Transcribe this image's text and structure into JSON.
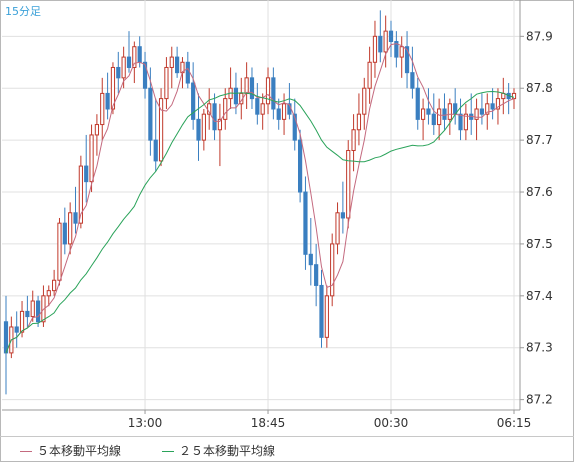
{
  "chart_data": {
    "type": "candlestick",
    "timeframe_label": "15分足",
    "ylim": [
      87.18,
      87.97
    ],
    "y_ticks": [
      "87.2",
      "87.3",
      "87.4",
      "87.5",
      "87.6",
      "87.7",
      "87.8",
      "87.9"
    ],
    "x_ticks": [
      {
        "label": "13:00",
        "bar": 26
      },
      {
        "label": "18:45",
        "bar": 49
      },
      {
        "label": "00:30",
        "bar": 72
      },
      {
        "label": "06:15",
        "bar": 95
      }
    ],
    "grid": true,
    "colors": {
      "up": "#c0392b",
      "down": "#3a7fc0",
      "ma5": "#c46a7f",
      "ma25": "#2aa35a",
      "grid": "#e0e0e0",
      "axis": "#999999"
    },
    "candles": [
      [
        87.35,
        87.4,
        87.21,
        87.29
      ],
      [
        87.29,
        87.36,
        87.28,
        87.34
      ],
      [
        87.34,
        87.37,
        87.3,
        87.33
      ],
      [
        87.33,
        87.39,
        87.32,
        87.37
      ],
      [
        87.37,
        87.4,
        87.34,
        87.36
      ],
      [
        87.36,
        87.41,
        87.35,
        87.39
      ],
      [
        87.39,
        87.4,
        87.34,
        87.35
      ],
      [
        87.35,
        87.42,
        87.34,
        87.4
      ],
      [
        87.4,
        87.42,
        87.38,
        87.41
      ],
      [
        87.41,
        87.45,
        87.4,
        87.43
      ],
      [
        87.43,
        87.55,
        87.42,
        87.54
      ],
      [
        87.54,
        87.57,
        87.48,
        87.5
      ],
      [
        87.5,
        87.58,
        87.48,
        87.56
      ],
      [
        87.56,
        87.61,
        87.52,
        87.54
      ],
      [
        87.54,
        87.67,
        87.53,
        87.65
      ],
      [
        87.65,
        87.71,
        87.58,
        87.62
      ],
      [
        87.62,
        87.73,
        87.6,
        87.71
      ],
      [
        87.71,
        87.75,
        87.67,
        87.73
      ],
      [
        87.73,
        87.82,
        87.7,
        87.79
      ],
      [
        87.79,
        87.83,
        87.74,
        87.76
      ],
      [
        87.76,
        87.85,
        87.75,
        87.84
      ],
      [
        87.84,
        87.87,
        87.79,
        87.82
      ],
      [
        87.82,
        87.88,
        87.8,
        87.86
      ],
      [
        87.86,
        87.91,
        87.83,
        87.84
      ],
      [
        87.84,
        87.89,
        87.81,
        87.88
      ],
      [
        87.88,
        87.9,
        87.84,
        87.85
      ],
      [
        87.85,
        87.87,
        87.78,
        87.8
      ],
      [
        87.8,
        87.84,
        87.67,
        87.7
      ],
      [
        87.7,
        87.78,
        87.64,
        87.66
      ],
      [
        87.66,
        87.8,
        87.65,
        87.78
      ],
      [
        87.78,
        87.86,
        87.76,
        87.84
      ],
      [
        87.84,
        87.88,
        87.8,
        87.86
      ],
      [
        87.86,
        87.88,
        87.82,
        87.83
      ],
      [
        87.83,
        87.86,
        87.8,
        87.85
      ],
      [
        87.85,
        87.87,
        87.8,
        87.81
      ],
      [
        87.81,
        87.85,
        87.72,
        87.74
      ],
      [
        87.74,
        87.79,
        87.66,
        87.7
      ],
      [
        87.7,
        87.76,
        87.68,
        87.75
      ],
      [
        87.75,
        87.8,
        87.72,
        87.77
      ],
      [
        87.77,
        87.79,
        87.7,
        87.72
      ],
      [
        87.72,
        87.77,
        87.65,
        87.74
      ],
      [
        87.74,
        87.8,
        87.72,
        87.78
      ],
      [
        87.78,
        87.84,
        87.76,
        87.8
      ],
      [
        87.8,
        87.83,
        87.75,
        87.77
      ],
      [
        87.77,
        87.82,
        87.74,
        87.79
      ],
      [
        87.79,
        87.85,
        87.76,
        87.82
      ],
      [
        87.82,
        87.84,
        87.76,
        87.78
      ],
      [
        87.78,
        87.81,
        87.73,
        87.75
      ],
      [
        87.75,
        87.79,
        87.72,
        87.77
      ],
      [
        87.77,
        87.84,
        87.75,
        87.82
      ],
      [
        87.82,
        87.84,
        87.74,
        87.76
      ],
      [
        87.76,
        87.78,
        87.72,
        87.74
      ],
      [
        87.74,
        87.79,
        87.71,
        87.77
      ],
      [
        87.77,
        87.81,
        87.74,
        87.75
      ],
      [
        87.75,
        87.78,
        87.68,
        87.7
      ],
      [
        87.7,
        87.72,
        87.58,
        87.6
      ],
      [
        87.6,
        87.63,
        87.45,
        87.48
      ],
      [
        87.48,
        87.55,
        87.42,
        87.46
      ],
      [
        87.46,
        87.5,
        87.38,
        87.42
      ],
      [
        87.42,
        87.45,
        87.3,
        87.32
      ],
      [
        87.32,
        87.42,
        87.3,
        87.4
      ],
      [
        87.4,
        87.52,
        87.38,
        87.5
      ],
      [
        87.5,
        87.58,
        87.48,
        87.56
      ],
      [
        87.56,
        87.62,
        87.52,
        87.55
      ],
      [
        87.55,
        87.7,
        87.53,
        87.68
      ],
      [
        87.68,
        87.75,
        87.64,
        87.72
      ],
      [
        87.72,
        87.79,
        87.69,
        87.75
      ],
      [
        87.75,
        87.82,
        87.72,
        87.8
      ],
      [
        87.8,
        87.88,
        87.77,
        87.85
      ],
      [
        87.85,
        87.93,
        87.82,
        87.9
      ],
      [
        87.9,
        87.95,
        87.85,
        87.87
      ],
      [
        87.87,
        87.94,
        87.84,
        87.91
      ],
      [
        87.91,
        87.93,
        87.86,
        87.89
      ],
      [
        87.89,
        87.91,
        87.84,
        87.86
      ],
      [
        87.86,
        87.9,
        87.82,
        87.88
      ],
      [
        87.88,
        87.91,
        87.8,
        87.83
      ],
      [
        87.83,
        87.88,
        87.78,
        87.8
      ],
      [
        87.8,
        87.82,
        87.72,
        87.74
      ],
      [
        87.74,
        87.78,
        87.7,
        87.76
      ],
      [
        87.76,
        87.8,
        87.73,
        87.75
      ],
      [
        87.75,
        87.79,
        87.71,
        87.73
      ],
      [
        87.73,
        87.78,
        87.7,
        87.76
      ],
      [
        87.76,
        87.79,
        87.72,
        87.74
      ],
      [
        87.74,
        87.78,
        87.71,
        87.77
      ],
      [
        87.77,
        87.8,
        87.73,
        87.75
      ],
      [
        87.75,
        87.78,
        87.7,
        87.72
      ],
      [
        87.72,
        87.77,
        87.7,
        87.75
      ],
      [
        87.75,
        87.79,
        87.71,
        87.74
      ],
      [
        87.74,
        87.78,
        87.7,
        87.76
      ],
      [
        87.76,
        87.79,
        87.73,
        87.75
      ],
      [
        87.75,
        87.79,
        87.72,
        87.77
      ],
      [
        87.77,
        87.8,
        87.74,
        87.76
      ],
      [
        87.76,
        87.8,
        87.73,
        87.78
      ],
      [
        87.78,
        87.82,
        87.75,
        87.79
      ],
      [
        87.79,
        87.81,
        87.75,
        87.78
      ],
      [
        87.78,
        87.8,
        87.76,
        87.79
      ]
    ],
    "series": [
      {
        "name": "５本移動平均線",
        "key": "ma5",
        "period": 5
      },
      {
        "name": "２５本移動平均線",
        "key": "ma25",
        "period": 25
      }
    ]
  }
}
